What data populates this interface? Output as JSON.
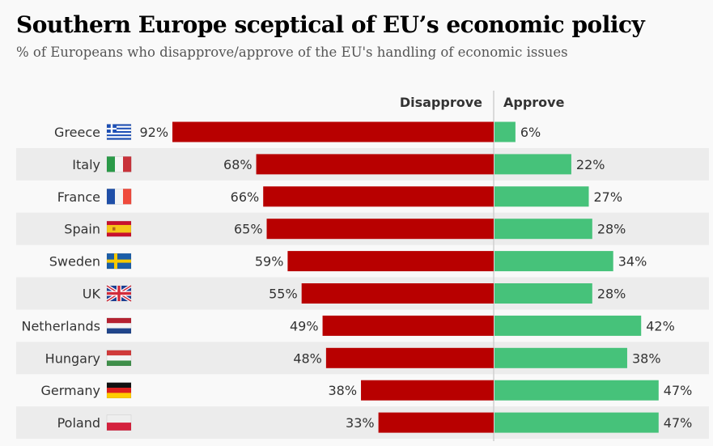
{
  "title": "Southern Europe sceptical of EU’s economic policy",
  "subtitle": "% of Europeans who disapprove/approve of the EU's handling of economic issues",
  "chart_data": {
    "type": "bar",
    "orientation": "horizontal-diverging",
    "title": "Southern Europe sceptical of EU’s economic policy",
    "subtitle": "% of Europeans who disapprove/approve of the EU's handling of economic issues",
    "xlabel": "",
    "ylabel": "",
    "unit": "%",
    "xlim": [
      0,
      100
    ],
    "grid": false,
    "legend": "top-center",
    "categories": [
      "Greece",
      "Italy",
      "France",
      "Spain",
      "Sweden",
      "UK",
      "Netherlands",
      "Hungary",
      "Germany",
      "Poland"
    ],
    "series": [
      {
        "name": "Disapprove",
        "color": "#b80000",
        "side": "left",
        "values": [
          92,
          68,
          66,
          65,
          59,
          55,
          49,
          48,
          38,
          33
        ]
      },
      {
        "name": "Approve",
        "color": "#46c27a",
        "side": "right",
        "values": [
          6,
          22,
          27,
          28,
          34,
          28,
          42,
          38,
          47,
          47
        ]
      }
    ],
    "flags": [
      "greece-flag",
      "italy-flag",
      "france-flag",
      "spain-flag",
      "sweden-flag",
      "uk-flag",
      "netherlands-flag",
      "hungary-flag",
      "germany-flag",
      "poland-flag"
    ]
  },
  "colors": {
    "background": "#f9f9f9",
    "row_band": "#ececec",
    "axis": "#d0d0d0",
    "text": "#333333"
  }
}
